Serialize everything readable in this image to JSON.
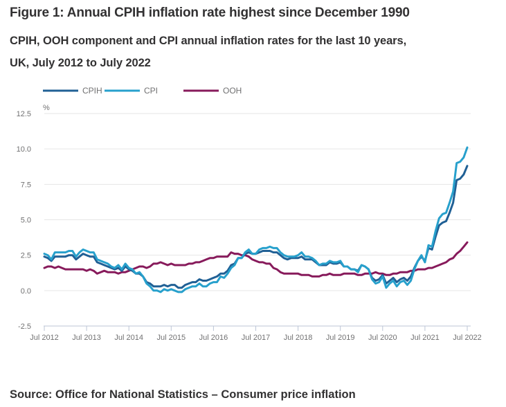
{
  "header": {
    "title": "Figure 1: Annual CPIH inflation rate highest since December 1990",
    "subtitle_line1": "CPIH, OOH component and CPI annual inflation rates for the last 10 years,",
    "subtitle_line2": "UK, July 2012 to July 2022"
  },
  "footer": {
    "source": "Source: Office for National Statistics – Consumer price inflation"
  },
  "chart_data": {
    "type": "line",
    "title": "Figure 1: Annual CPIH inflation rate highest since December 1990",
    "subtitle": "CPIH, OOH component and CPI annual inflation rates for the last 10 years, UK, July 2012 to July 2022",
    "xlabel": "",
    "ylabel": "%",
    "ylim": [
      -2.5,
      12.5
    ],
    "yticks": [
      -2.5,
      0.0,
      2.5,
      5.0,
      7.5,
      10.0,
      12.5
    ],
    "ytick_labels": [
      "-2.5",
      "0.0",
      "2.5",
      "5.0",
      "7.5",
      "10.0",
      "12.5"
    ],
    "x_start": "Jul 2012",
    "x_end": "Jul 2022",
    "x_frequency": "monthly",
    "xtick_labels": [
      "Jul 2012",
      "Jul 2013",
      "Jul 2014",
      "Jul 2015",
      "Jul 2016",
      "Jul 2017",
      "Jul 2018",
      "Jul 2019",
      "Jul 2020",
      "Jul 2021",
      "Jul 2022"
    ],
    "grid": "horizontal",
    "legend_position": "top-left",
    "series": [
      {
        "name": "CPIH",
        "color": "#206095",
        "values": [
          2.4,
          2.3,
          2.1,
          2.4,
          2.4,
          2.4,
          2.4,
          2.5,
          2.5,
          2.2,
          2.4,
          2.6,
          2.5,
          2.4,
          2.4,
          2.0,
          1.9,
          1.8,
          1.7,
          1.6,
          1.5,
          1.6,
          1.4,
          1.7,
          1.5,
          1.4,
          1.2,
          1.2,
          1.0,
          0.6,
          0.5,
          0.3,
          0.3,
          0.3,
          0.4,
          0.3,
          0.4,
          0.4,
          0.2,
          0.2,
          0.4,
          0.5,
          0.6,
          0.6,
          0.8,
          0.7,
          0.7,
          0.8,
          0.9,
          1.0,
          1.2,
          1.2,
          1.4,
          1.8,
          1.9,
          2.3,
          2.3,
          2.6,
          2.7,
          2.6,
          2.6,
          2.7,
          2.8,
          2.8,
          2.8,
          2.7,
          2.7,
          2.5,
          2.3,
          2.2,
          2.3,
          2.3,
          2.3,
          2.4,
          2.2,
          2.2,
          2.2,
          2.0,
          1.8,
          1.8,
          1.8,
          2.0,
          1.9,
          1.9,
          2.0,
          1.7,
          1.7,
          1.5,
          1.5,
          1.4,
          1.8,
          1.7,
          1.5,
          0.9,
          0.7,
          0.8,
          1.1,
          0.5,
          0.7,
          0.9,
          0.6,
          0.8,
          0.9,
          0.7,
          1.0,
          1.6,
          2.1,
          2.4,
          2.1,
          3.0,
          2.9,
          3.8,
          4.6,
          4.8,
          4.9,
          5.5,
          6.2,
          7.8,
          7.9,
          8.2,
          8.8
        ]
      },
      {
        "name": "CPI",
        "color": "#27a0cc",
        "values": [
          2.6,
          2.5,
          2.2,
          2.7,
          2.7,
          2.7,
          2.7,
          2.8,
          2.8,
          2.4,
          2.7,
          2.9,
          2.8,
          2.7,
          2.7,
          2.2,
          2.1,
          2.0,
          1.9,
          1.7,
          1.6,
          1.8,
          1.5,
          1.9,
          1.6,
          1.5,
          1.2,
          1.3,
          1.0,
          0.5,
          0.3,
          0.0,
          0.0,
          -0.1,
          0.1,
          0.0,
          0.1,
          0.0,
          -0.1,
          -0.1,
          0.1,
          0.2,
          0.3,
          0.3,
          0.5,
          0.3,
          0.3,
          0.5,
          0.6,
          0.6,
          1.0,
          0.9,
          1.2,
          1.6,
          1.8,
          2.3,
          2.3,
          2.7,
          2.9,
          2.6,
          2.6,
          2.9,
          3.0,
          3.0,
          3.1,
          3.0,
          3.0,
          2.7,
          2.5,
          2.4,
          2.4,
          2.4,
          2.5,
          2.7,
          2.4,
          2.4,
          2.3,
          2.1,
          1.8,
          1.9,
          1.9,
          2.1,
          2.0,
          2.0,
          2.1,
          1.7,
          1.7,
          1.5,
          1.5,
          1.3,
          1.8,
          1.7,
          1.5,
          0.8,
          0.5,
          0.6,
          1.0,
          0.2,
          0.5,
          0.7,
          0.3,
          0.6,
          0.7,
          0.4,
          0.7,
          1.5,
          2.1,
          2.5,
          2.0,
          3.2,
          3.1,
          4.2,
          5.1,
          5.4,
          5.5,
          6.2,
          7.0,
          9.0,
          9.1,
          9.4,
          10.1
        ]
      },
      {
        "name": "OOH",
        "color": "#871a5b",
        "values": [
          1.6,
          1.7,
          1.7,
          1.6,
          1.7,
          1.6,
          1.5,
          1.5,
          1.5,
          1.5,
          1.5,
          1.5,
          1.4,
          1.5,
          1.4,
          1.2,
          1.3,
          1.4,
          1.3,
          1.3,
          1.3,
          1.2,
          1.3,
          1.3,
          1.4,
          1.5,
          1.6,
          1.7,
          1.7,
          1.6,
          1.7,
          1.9,
          1.9,
          2.0,
          1.9,
          1.8,
          1.9,
          1.8,
          1.8,
          1.8,
          1.8,
          1.9,
          1.9,
          2.0,
          2.0,
          2.1,
          2.2,
          2.3,
          2.3,
          2.4,
          2.4,
          2.4,
          2.4,
          2.7,
          2.6,
          2.6,
          2.5,
          2.5,
          2.4,
          2.2,
          2.1,
          2.0,
          2.0,
          1.9,
          1.9,
          1.6,
          1.5,
          1.3,
          1.2,
          1.2,
          1.2,
          1.2,
          1.2,
          1.1,
          1.1,
          1.1,
          1.0,
          1.0,
          1.0,
          1.1,
          1.1,
          1.2,
          1.1,
          1.1,
          1.1,
          1.2,
          1.2,
          1.2,
          1.2,
          1.1,
          1.1,
          1.2,
          1.2,
          1.2,
          1.3,
          1.2,
          1.2,
          1.1,
          1.1,
          1.2,
          1.2,
          1.3,
          1.3,
          1.3,
          1.4,
          1.4,
          1.5,
          1.5,
          1.5,
          1.6,
          1.6,
          1.7,
          1.8,
          1.9,
          2.0,
          2.2,
          2.3,
          2.6,
          2.8,
          3.1,
          3.4
        ]
      }
    ]
  }
}
